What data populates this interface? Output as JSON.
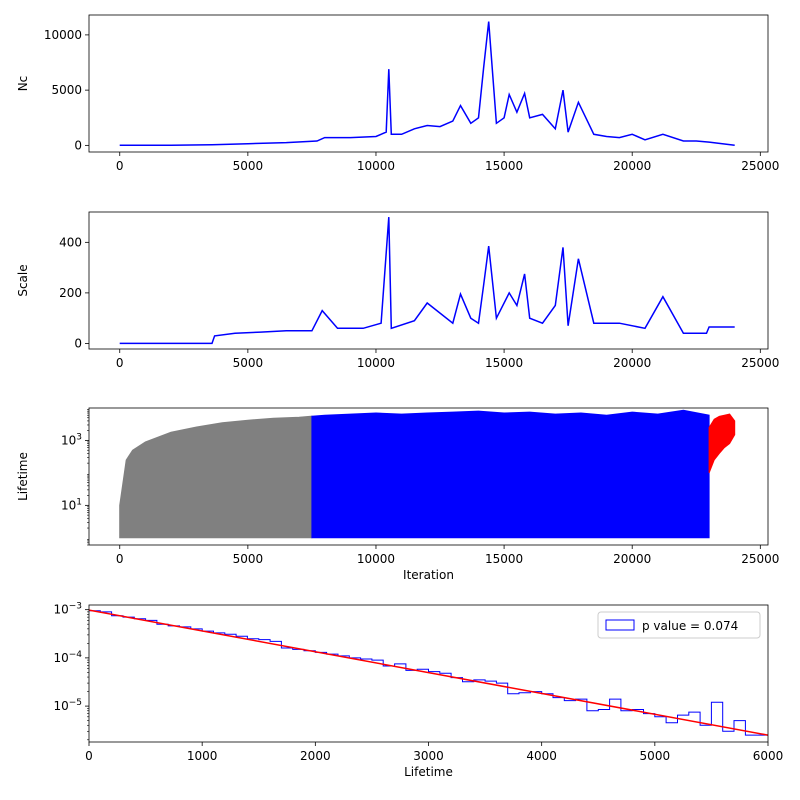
{
  "chart_data": [
    {
      "type": "line",
      "ylabel": "Nc",
      "xlabel": "",
      "xlim": [
        -1200,
        25300
      ],
      "ylim": [
        -600,
        11800
      ],
      "xticks": [
        0,
        5000,
        10000,
        15000,
        20000,
        25000
      ],
      "yticks": [
        0,
        5000,
        10000
      ],
      "series": [
        {
          "color": "#0000ff",
          "x": [
            0,
            2000,
            3600,
            5000,
            6500,
            7700,
            8000,
            9000,
            10000,
            10400,
            10500,
            10600,
            11000,
            11500,
            12000,
            12500,
            13000,
            13300,
            13700,
            14000,
            14200,
            14400,
            14700,
            15000,
            15200,
            15500,
            15800,
            16000,
            16500,
            17000,
            17300,
            17500,
            17900,
            18500,
            19000,
            19500,
            20000,
            20500,
            21200,
            22000,
            22500,
            23000,
            24000
          ],
          "y": [
            20,
            20,
            60,
            150,
            250,
            400,
            700,
            700,
            800,
            1200,
            6900,
            1000,
            1000,
            1500,
            1800,
            1700,
            2200,
            3600,
            2000,
            2500,
            7000,
            11200,
            2000,
            2500,
            4600,
            3000,
            4700,
            2500,
            2800,
            1500,
            5000,
            1200,
            3900,
            1000,
            800,
            700,
            1000,
            500,
            1000,
            400,
            400,
            300,
            20
          ]
        }
      ]
    },
    {
      "type": "line",
      "ylabel": "Scale",
      "xlabel": "",
      "xlim": [
        -1200,
        25300
      ],
      "ylim": [
        -22,
        520
      ],
      "xticks": [
        0,
        5000,
        10000,
        15000,
        20000,
        25000
      ],
      "yticks": [
        0,
        200,
        400
      ],
      "series": [
        {
          "color": "#0000ff",
          "x": [
            0,
            3600,
            3700,
            4500,
            5500,
            6500,
            7500,
            7900,
            8500,
            9500,
            10200,
            10500,
            10600,
            11500,
            12000,
            13000,
            13300,
            13700,
            14000,
            14200,
            14400,
            14700,
            15200,
            15500,
            15800,
            16000,
            16500,
            17000,
            17300,
            17500,
            17900,
            18500,
            19500,
            20500,
            21200,
            22000,
            22900,
            23000,
            24000
          ],
          "y": [
            0,
            0,
            30,
            40,
            45,
            50,
            50,
            130,
            60,
            60,
            80,
            500,
            60,
            90,
            160,
            80,
            195,
            100,
            80,
            230,
            385,
            100,
            200,
            150,
            275,
            100,
            80,
            150,
            380,
            70,
            335,
            80,
            80,
            60,
            185,
            40,
            40,
            65,
            65
          ]
        }
      ]
    },
    {
      "type": "area",
      "ylabel": "Lifetime",
      "xlabel": "Iteration",
      "yscale": "log",
      "xlim": [
        -1200,
        25300
      ],
      "ylim": [
        0.6,
        10000
      ],
      "xticks": [
        0,
        5000,
        10000,
        15000,
        20000,
        25000
      ],
      "yticks": [
        10,
        1000
      ],
      "ytick_labels": [
        "10^1",
        "10^3"
      ],
      "series": [
        {
          "color": "#808080",
          "x": [
            0,
            250,
            500,
            1000,
            2000,
            3000,
            4000,
            5000,
            6000,
            7000,
            7500
          ],
          "ymax": [
            10,
            250,
            500,
            900,
            1800,
            2600,
            3500,
            4200,
            4800,
            5200,
            5600
          ],
          "ymin": 1
        },
        {
          "color": "#0000ff",
          "x": [
            7500,
            8000,
            9000,
            10000,
            11000,
            12000,
            13000,
            14000,
            15000,
            16000,
            17000,
            18000,
            19000,
            20000,
            21000,
            22000,
            23000
          ],
          "ymax": [
            5600,
            6000,
            6500,
            7000,
            6500,
            7000,
            7500,
            8000,
            7000,
            7500,
            6500,
            7000,
            6000,
            7500,
            6500,
            8500,
            6000
          ],
          "ymin": 1
        },
        {
          "color": "#ff0000",
          "x": [
            23000,
            23200,
            23400,
            23600,
            23800,
            24000
          ],
          "ymax": [
            2500,
            4500,
            5500,
            6000,
            6500,
            4000
          ],
          "ymin": [
            100,
            250,
            400,
            600,
            800,
            1500
          ]
        }
      ]
    },
    {
      "type": "histogram",
      "xlabel": "Lifetime",
      "ylabel": "",
      "yscale": "log",
      "xlim": [
        0,
        6000
      ],
      "ylim": [
        1.8e-06,
        0.00125
      ],
      "xticks": [
        0,
        1000,
        2000,
        3000,
        4000,
        5000,
        6000
      ],
      "yticks": [
        1e-05,
        0.0001,
        0.001
      ],
      "ytick_labels": [
        "10^-5",
        "10^-4",
        "10^-3"
      ],
      "legend": {
        "position": "upper-right",
        "label": "p value = 0.074"
      },
      "bin_edges": [
        0,
        100,
        200,
        300,
        400,
        500,
        600,
        700,
        800,
        900,
        1000,
        1100,
        1200,
        1300,
        1400,
        1500,
        1600,
        1700,
        1800,
        1900,
        2000,
        2100,
        2200,
        2300,
        2400,
        2500,
        2600,
        2700,
        2800,
        2900,
        3000,
        3100,
        3200,
        3300,
        3400,
        3500,
        3600,
        3700,
        3800,
        3900,
        4000,
        4100,
        4200,
        4300,
        4400,
        4500,
        4600,
        4700,
        4800,
        4900,
        5000,
        5100,
        5200,
        5300,
        5400,
        5500,
        5600,
        5700,
        5800,
        5900,
        6000
      ],
      "counts": [
        0.00095,
        0.0009,
        0.00075,
        0.0007,
        0.00065,
        0.0006,
        0.0005,
        0.00046,
        0.00044,
        0.0004,
        0.00036,
        0.00033,
        0.00031,
        0.00028,
        0.00025,
        0.00024,
        0.00022,
        0.00016,
        0.00015,
        0.00014,
        0.00013,
        0.00012,
        0.00011,
        0.0001,
        9.5e-05,
        9e-05,
        6.8e-05,
        7.5e-05,
        5.5e-05,
        5.8e-05,
        5.2e-05,
        4.8e-05,
        3.9e-05,
        3.2e-05,
        3.5e-05,
        3.3e-05,
        3e-05,
        1.8e-05,
        1.9e-05,
        2e-05,
        1.8e-05,
        1.5e-05,
        1.3e-05,
        1.4e-05,
        8e-06,
        8.5e-06,
        1.4e-05,
        8e-06,
        8.5e-06,
        7e-06,
        6e-06,
        4.5e-06,
        6.5e-06,
        7.5e-06,
        4e-06,
        1.2e-05,
        3e-06,
        5e-06,
        2.5e-06,
        2.5e-06
      ],
      "hist_color": "#0000ff",
      "fit": {
        "color": "#ff0000",
        "x": [
          0,
          6000
        ],
        "y": [
          0.00098,
          2.5e-06
        ]
      }
    }
  ]
}
